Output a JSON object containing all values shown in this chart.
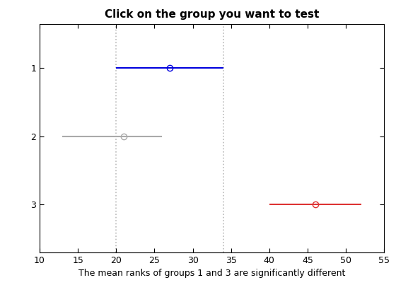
{
  "title": "Click on the group you want to test",
  "xlabel": "The mean ranks of groups 1 and 3 are significantly different",
  "xlim": [
    10,
    55
  ],
  "ylim": [
    3.7,
    0.35
  ],
  "xticks": [
    10,
    15,
    20,
    25,
    30,
    35,
    40,
    45,
    50,
    55
  ],
  "yticks": [
    1,
    2,
    3
  ],
  "groups": [
    {
      "y": 1,
      "mean": 27,
      "lo": 20,
      "hi": 34,
      "color": "#0000dd",
      "marker_color": "#0000dd"
    },
    {
      "y": 2,
      "mean": 21,
      "lo": 13,
      "hi": 26,
      "color": "#aaaaaa",
      "marker_color": "#aaaaaa"
    },
    {
      "y": 3,
      "mean": 46,
      "lo": 40,
      "hi": 52,
      "color": "#dd3333",
      "marker_color": "#dd3333"
    }
  ],
  "vlines": [
    20,
    34
  ],
  "vline_color": "#bbbbbb",
  "background_color": "#ffffff",
  "title_fontsize": 11,
  "xlabel_fontsize": 9,
  "tick_fontsize": 9
}
